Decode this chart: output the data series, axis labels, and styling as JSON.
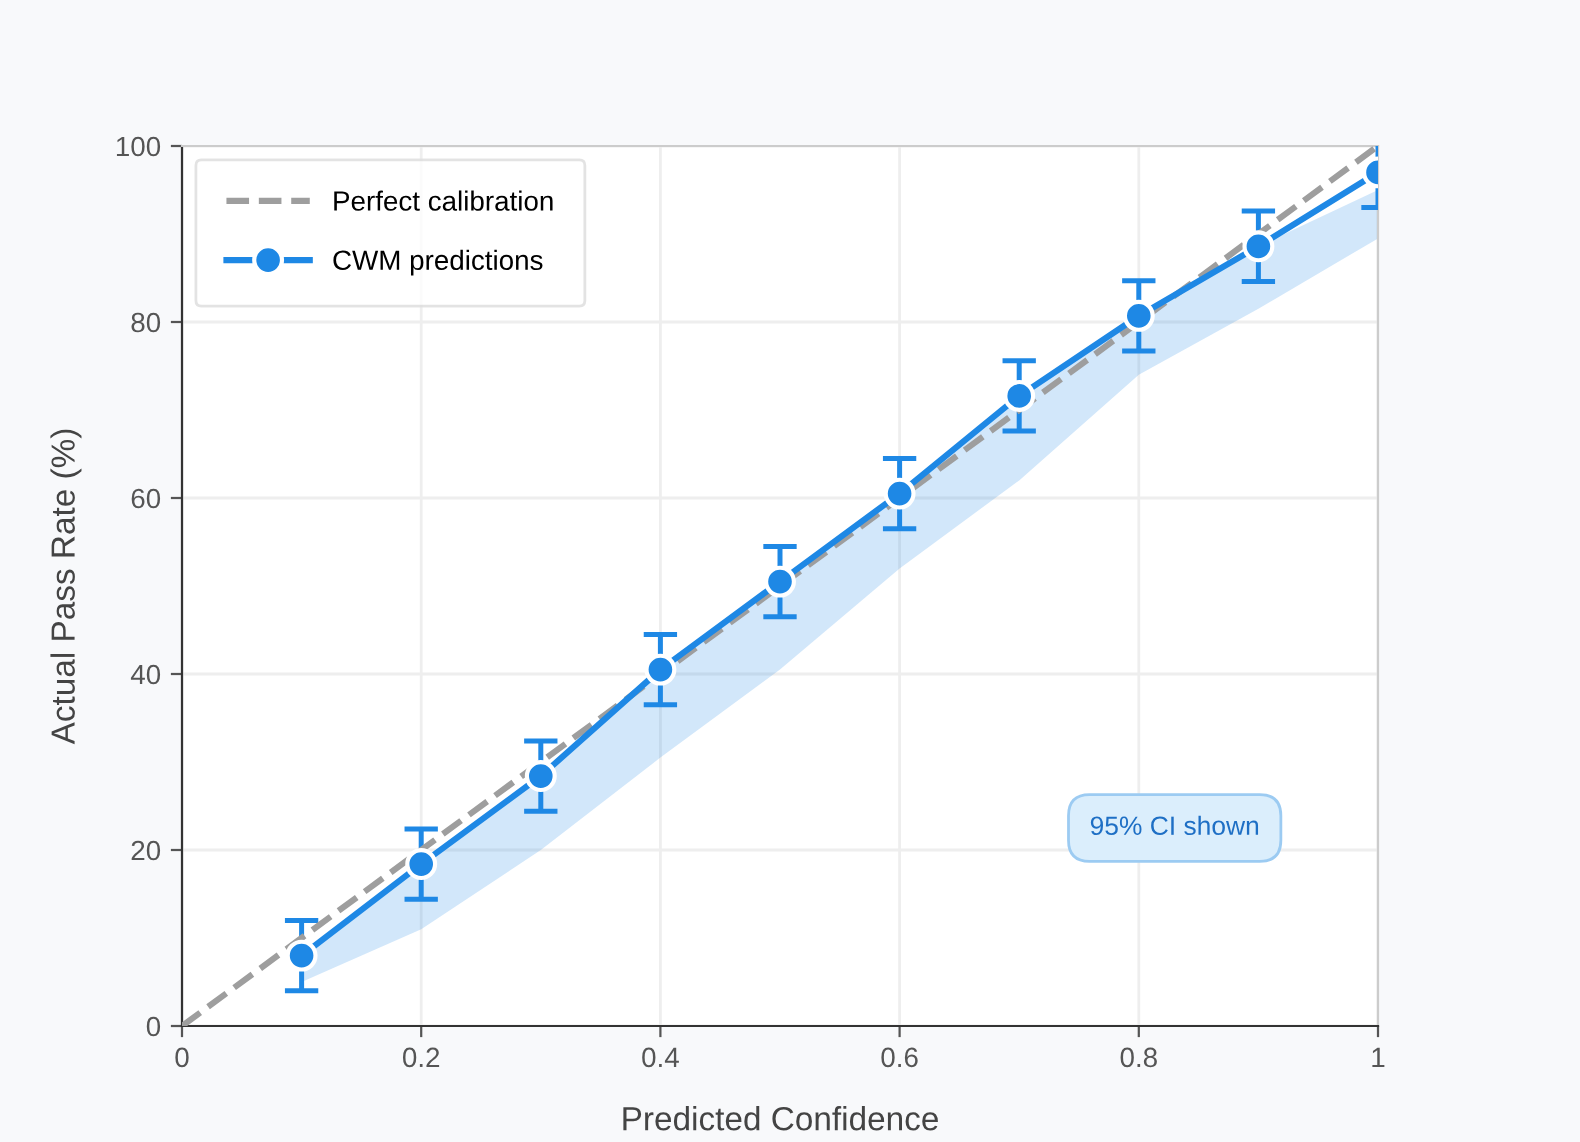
{
  "chart_data": {
    "type": "line",
    "xlabel": "Predicted Confidence",
    "ylabel": "Actual Pass Rate (%)",
    "xlim": [
      0,
      1
    ],
    "ylim": [
      0,
      100
    ],
    "xticks": [
      0,
      0.2,
      0.4,
      0.6,
      0.8,
      1
    ],
    "yticks": [
      0,
      20,
      40,
      60,
      80,
      100
    ],
    "grid": true,
    "legend": "top left",
    "series": [
      {
        "name": "Perfect calibration",
        "color": "#9e9e9e",
        "x": [
          0,
          1
        ],
        "values": [
          0,
          100
        ],
        "line_style": "dashed",
        "marker": "none"
      },
      {
        "name": "CWM predictions",
        "color": "#1e88e5",
        "x": [
          0.1,
          0.2,
          0.3,
          0.4,
          0.5,
          0.6,
          0.7,
          0.8,
          0.9,
          1.0
        ],
        "values": [
          8,
          18.4,
          28.4,
          40.5,
          50.5,
          60.5,
          71.6,
          80.7,
          88.6,
          97
        ],
        "errors": [
          4,
          4,
          4,
          4,
          4,
          4,
          4,
          4,
          4,
          4
        ],
        "lower": [
          5,
          11,
          20,
          30.5,
          40.5,
          52,
          62,
          74,
          81.5,
          89.5
        ],
        "upper": [
          8,
          18.4,
          28.4,
          40.5,
          50.5,
          60.5,
          71.6,
          80.7,
          88.6,
          95
        ],
        "line_style": "solid",
        "marker": "circle"
      }
    ],
    "annotations": [
      "95% CI shown"
    ]
  }
}
